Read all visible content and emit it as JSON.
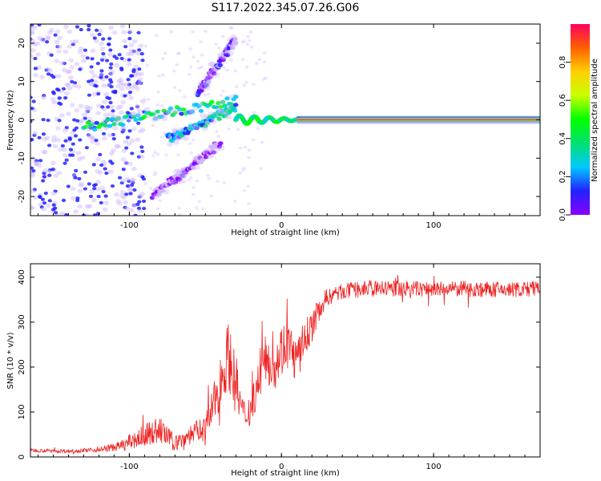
{
  "figure_title": "S117.2022.345.07.26.G06",
  "colors": {
    "snr_line": "#ee2222",
    "spectrum_base": "#7a2cf0",
    "axis": "#000000"
  },
  "chart_data": [
    {
      "type": "heatmap",
      "name": "spectrogram",
      "xlabel": "Height of straight line (km)",
      "ylabel": "Frequency (Hz)",
      "xlim": [
        -165,
        170
      ],
      "ylim": [
        -25,
        25
      ],
      "xticks": [
        -100,
        0,
        100
      ],
      "yticks": [
        -20,
        -10,
        0,
        10,
        20
      ],
      "colorbar": {
        "label": "Normalized spectral amplitude",
        "range": [
          0,
          1
        ],
        "ticks": [
          "0.0",
          "0.2",
          "0.4",
          "0.6",
          "0.8"
        ],
        "colormap": [
          "#ffffff",
          "#8a00ff",
          "#2222ff",
          "#00c8ff",
          "#00e070",
          "#00ff00",
          "#c8ff00",
          "#ffd000",
          "#ff6000",
          "#ff0060"
        ]
      },
      "features": [
        {
          "name": "carrier",
          "x_range": [
            10,
            170
          ],
          "freq_hz": 0,
          "amplitude": 0.9
        },
        {
          "name": "multipath branch",
          "x_range": [
            -130,
            -30
          ],
          "freq_start_hz": -2,
          "freq_end_hz": 5,
          "amplitude": 0.4
        },
        {
          "name": "lower branch",
          "x_range": [
            -75,
            -30
          ],
          "freq_start_hz": -5,
          "freq_end_hz": 3,
          "amplitude": 0.35
        },
        {
          "name": "upper branch",
          "x_range": [
            -55,
            -30
          ],
          "freq_start_hz": 7,
          "freq_end_hz": 21,
          "amplitude": 0.15
        },
        {
          "name": "falling branch",
          "x_range": [
            -85,
            -40
          ],
          "freq_start_hz": -20,
          "freq_end_hz": -6,
          "amplitude": 0.12
        }
      ]
    },
    {
      "type": "line",
      "name": "snr",
      "xlabel": "Height of straight line (km)",
      "ylabel": "SNR (10 * v/v)",
      "xlim": [
        -165,
        170
      ],
      "ylim": [
        0,
        430
      ],
      "xticks": [
        -100,
        0,
        100
      ],
      "yticks": [
        0,
        100,
        200,
        300,
        400
      ],
      "series": [
        {
          "name": "SNR",
          "x": [
            -165,
            -140,
            -120,
            -105,
            -95,
            -85,
            -80,
            -70,
            -60,
            -50,
            -45,
            -40,
            -35,
            -30,
            -25,
            -20,
            -15,
            -10,
            -5,
            0,
            5,
            10,
            15,
            20,
            25,
            30,
            40,
            50,
            60,
            80,
            100,
            120,
            140,
            160,
            170
          ],
          "y": [
            15,
            13,
            16,
            25,
            40,
            55,
            60,
            30,
            50,
            65,
            110,
            170,
            230,
            160,
            90,
            110,
            170,
            220,
            200,
            240,
            250,
            210,
            260,
            290,
            330,
            355,
            368,
            372,
            375,
            375,
            373,
            374,
            372,
            373,
            375
          ],
          "noise": [
            4,
            4,
            5,
            12,
            22,
            28,
            30,
            18,
            22,
            30,
            45,
            60,
            75,
            70,
            40,
            40,
            45,
            55,
            55,
            60,
            55,
            50,
            45,
            35,
            25,
            20,
            18,
            18,
            18,
            18,
            18,
            18,
            18,
            18,
            18
          ]
        }
      ]
    }
  ]
}
